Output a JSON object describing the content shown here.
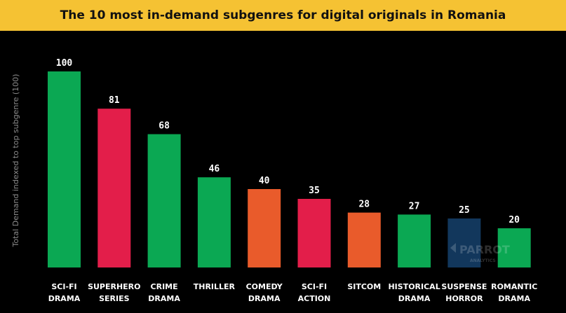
{
  "chart_data": {
    "type": "bar",
    "title": "The 10 most in-demand subgenres for digital originals in Romania",
    "ylabel": "Total Demand indexed to top subgenre (100)",
    "ylim": [
      0,
      100
    ],
    "grid": false,
    "categories": [
      [
        "SCI-FI",
        "DRAMA"
      ],
      [
        "SUPERHERO",
        "SERIES"
      ],
      [
        "CRIME",
        "DRAMA"
      ],
      [
        "THRILLER"
      ],
      [
        "COMEDY",
        "DRAMA"
      ],
      [
        "SCI-FI",
        "ACTION"
      ],
      [
        "SITCOM"
      ],
      [
        "HISTORICAL",
        "DRAMA"
      ],
      [
        "SUSPENSE",
        "HORROR"
      ],
      [
        "ROMANTIC",
        "DRAMA"
      ]
    ],
    "values": [
      100,
      81,
      68,
      46,
      40,
      35,
      28,
      27,
      25,
      20
    ],
    "colors": [
      "#0BA853",
      "#E31E4A",
      "#0BA853",
      "#0BA853",
      "#E95B2B",
      "#E31E4A",
      "#E95B2B",
      "#0BA853",
      "#12375C",
      "#0BA853"
    ]
  },
  "watermark": {
    "text": "PARROT",
    "subtext": "ANALYTICS"
  }
}
